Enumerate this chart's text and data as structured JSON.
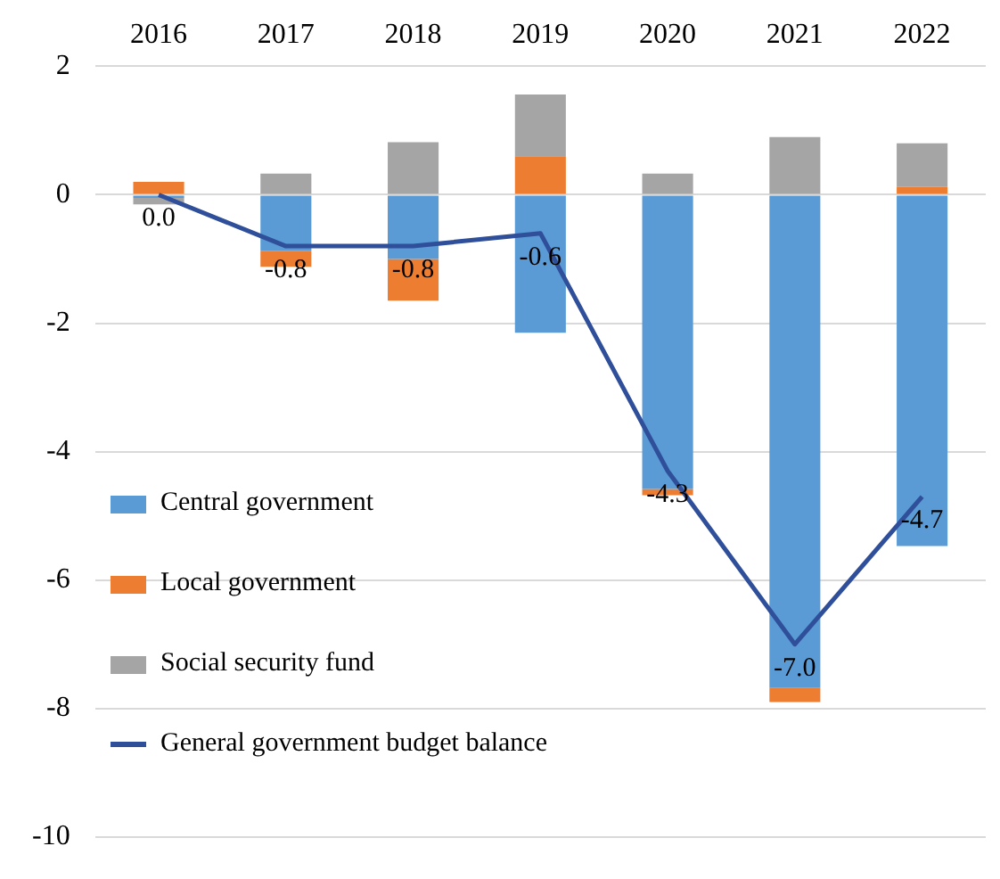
{
  "chart_data": {
    "type": "bar",
    "stacked": true,
    "categories": [
      "2016",
      "2017",
      "2018",
      "2019",
      "2020",
      "2021",
      "2022"
    ],
    "series": [
      {
        "name": "Central government",
        "color": "#5b9bd5",
        "values": [
          -0.05,
          -0.87,
          -1.0,
          -2.15,
          -4.58,
          -7.68,
          -5.47
        ]
      },
      {
        "name": "Local government",
        "color": "#ed7d31",
        "values": [
          0.2,
          -0.25,
          -0.65,
          0.6,
          -0.1,
          -0.22,
          0.12
        ]
      },
      {
        "name": "Social security fund",
        "color": "#a5a5a5",
        "values": [
          -0.1,
          0.33,
          0.82,
          0.96,
          0.33,
          0.9,
          0.68
        ]
      },
      {
        "name": "General government budget balance",
        "type": "line",
        "color": "#2f4f9a",
        "values": [
          0.0,
          -0.8,
          -0.8,
          -0.6,
          -4.3,
          -7.0,
          -4.7
        ],
        "value_labels": [
          "0.0",
          "-0.8",
          "-0.8",
          "-0.6",
          "-4.3",
          "-7.0",
          "-4.7"
        ]
      }
    ],
    "ylim": [
      -10,
      2
    ],
    "yticks": [
      -10,
      -8,
      -6,
      -4,
      -2,
      0,
      2
    ],
    "grid": "y",
    "legend": "left",
    "marker": "none"
  }
}
